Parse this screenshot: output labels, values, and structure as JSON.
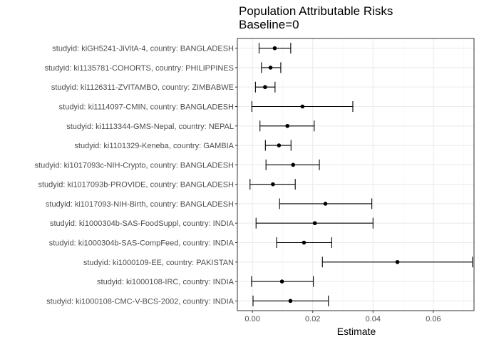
{
  "chart_data": {
    "type": "scatter",
    "title": "Population Attributable Risks",
    "subtitle": "Baseline=0",
    "xlabel": "Estimate",
    "ylabel": "",
    "xlim": [
      -0.005,
      0.0735
    ],
    "x_ticks": [
      0.0,
      0.02,
      0.04,
      0.06
    ],
    "x_tick_labels": [
      "0.00",
      "0.02",
      "0.04",
      "0.06"
    ],
    "grid": true,
    "legend": "none",
    "colors": {
      "point": "#000000",
      "errorbar": "#000000",
      "panel_border": "#333333",
      "grid_major": "#ebebeb",
      "grid_minor": "#f5f5f5"
    },
    "categories": [
      "studyid: kiGH5241-JiVitA-4, country: BANGLADESH",
      "studyid: ki1135781-COHORTS, country: PHILIPPINES",
      "studyid: ki1126311-ZVITAMBO, country: ZIMBABWE",
      "studyid: ki1114097-CMIN, country: BANGLADESH",
      "studyid: ki1113344-GMS-Nepal, country: NEPAL",
      "studyid: ki1101329-Keneba, country: GAMBIA",
      "studyid: ki1017093c-NIH-Crypto, country: BANGLADESH",
      "studyid: ki1017093b-PROVIDE, country: BANGLADESH",
      "studyid: ki1017093-NIH-Birth, country: BANGLADESH",
      "studyid: ki1000304b-SAS-FoodSuppl, country: INDIA",
      "studyid: ki1000304b-SAS-CompFeed, country: INDIA",
      "studyid: ki1000109-EE, country: PAKISTAN",
      "studyid: ki1000108-IRC, country: INDIA",
      "studyid: ki1000108-CMC-V-BCS-2002, country: INDIA"
    ],
    "estimates": [
      0.0074,
      0.006,
      0.0042,
      0.0166,
      0.0116,
      0.0088,
      0.0135,
      0.0068,
      0.0242,
      0.0207,
      0.0171,
      0.0481,
      0.0098,
      0.0126
    ],
    "ci_lower": [
      0.0022,
      0.003,
      0.001,
      -0.0002,
      0.0025,
      0.0043,
      0.0045,
      -0.0008,
      0.009,
      0.0012,
      0.008,
      0.0232,
      -0.0003,
      0.0002
    ],
    "ci_upper": [
      0.0127,
      0.0094,
      0.0075,
      0.0333,
      0.0205,
      0.0128,
      0.0222,
      0.0142,
      0.0396,
      0.04,
      0.0263,
      0.073,
      0.0202,
      0.0252
    ]
  }
}
